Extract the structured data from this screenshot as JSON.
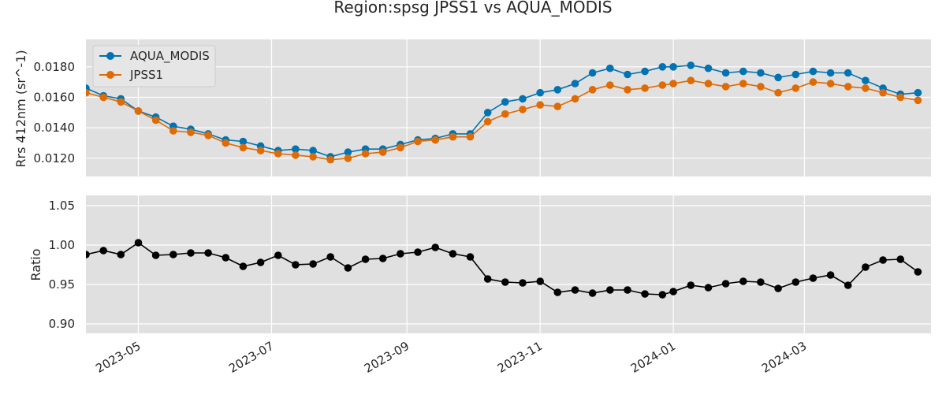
{
  "title": "Region:spsg JPSS1 vs AQUA_MODIS",
  "colors": {
    "AQUA_MODIS": "#0173b2",
    "JPSS1": "#de6b05",
    "Ratio": "#000000",
    "axes_bg": "#e0e0e0",
    "grid": "#ffffff"
  },
  "chart_data": [
    {
      "type": "line",
      "ylabel": "Rrs 412nm (sr^-1)",
      "ylim": [
        0.0108,
        0.0198
      ],
      "yticks": [
        0.012,
        0.014,
        0.016,
        0.018
      ],
      "ytick_labels": [
        "0.0120",
        "0.0140",
        "0.0160",
        "0.0180"
      ],
      "xlim": [
        "2023-04-07",
        "2024-04-28"
      ],
      "grid": true,
      "legend": "upper-left",
      "series": [
        {
          "name": "AQUA_MODIS",
          "x": [
            "2023-04-07",
            "2023-04-15",
            "2023-04-23",
            "2023-05-01",
            "2023-05-09",
            "2023-05-17",
            "2023-05-25",
            "2023-06-02",
            "2023-06-10",
            "2023-06-18",
            "2023-06-26",
            "2023-07-04",
            "2023-07-12",
            "2023-07-20",
            "2023-07-28",
            "2023-08-05",
            "2023-08-13",
            "2023-08-21",
            "2023-08-29",
            "2023-09-06",
            "2023-09-14",
            "2023-09-22",
            "2023-09-30",
            "2023-10-08",
            "2023-10-16",
            "2023-10-24",
            "2023-11-01",
            "2023-11-09",
            "2023-11-17",
            "2023-11-25",
            "2023-12-03",
            "2023-12-11",
            "2023-12-19",
            "2023-12-27",
            "2024-01-01",
            "2024-01-09",
            "2024-01-17",
            "2024-01-25",
            "2024-02-02",
            "2024-02-10",
            "2024-02-18",
            "2024-02-26",
            "2024-03-05",
            "2024-03-13",
            "2024-03-21",
            "2024-03-29",
            "2024-04-06",
            "2024-04-14",
            "2024-04-22"
          ],
          "y": [
            0.0166,
            0.0161,
            0.0159,
            0.0151,
            0.0147,
            0.0141,
            0.0139,
            0.0136,
            0.0132,
            0.0131,
            0.0128,
            0.0125,
            0.0126,
            0.0125,
            0.0121,
            0.0124,
            0.0126,
            0.0126,
            0.0129,
            0.0132,
            0.0133,
            0.0136,
            0.0136,
            0.015,
            0.0157,
            0.0159,
            0.0163,
            0.0165,
            0.0169,
            0.0176,
            0.0179,
            0.0175,
            0.0177,
            0.018,
            0.018,
            0.0181,
            0.0179,
            0.0176,
            0.0177,
            0.0176,
            0.0173,
            0.0175,
            0.0177,
            0.0176,
            0.0176,
            0.0171,
            0.0166,
            0.0162,
            0.0163
          ]
        },
        {
          "name": "JPSS1",
          "x": [
            "2023-04-07",
            "2023-04-15",
            "2023-04-23",
            "2023-05-01",
            "2023-05-09",
            "2023-05-17",
            "2023-05-25",
            "2023-06-02",
            "2023-06-10",
            "2023-06-18",
            "2023-06-26",
            "2023-07-04",
            "2023-07-12",
            "2023-07-20",
            "2023-07-28",
            "2023-08-05",
            "2023-08-13",
            "2023-08-21",
            "2023-08-29",
            "2023-09-06",
            "2023-09-14",
            "2023-09-22",
            "2023-09-30",
            "2023-10-08",
            "2023-10-16",
            "2023-10-24",
            "2023-11-01",
            "2023-11-09",
            "2023-11-17",
            "2023-11-25",
            "2023-12-03",
            "2023-12-11",
            "2023-12-19",
            "2023-12-27",
            "2024-01-01",
            "2024-01-09",
            "2024-01-17",
            "2024-01-25",
            "2024-02-02",
            "2024-02-10",
            "2024-02-18",
            "2024-02-26",
            "2024-03-05",
            "2024-03-13",
            "2024-03-21",
            "2024-03-29",
            "2024-04-06",
            "2024-04-14",
            "2024-04-22"
          ],
          "y": [
            0.0163,
            0.016,
            0.0157,
            0.0151,
            0.0145,
            0.0138,
            0.0137,
            0.0135,
            0.013,
            0.0127,
            0.0125,
            0.0123,
            0.0122,
            0.0121,
            0.0119,
            0.012,
            0.0123,
            0.0124,
            0.0127,
            0.0131,
            0.0132,
            0.0134,
            0.0134,
            0.0144,
            0.0149,
            0.0152,
            0.0155,
            0.0154,
            0.0159,
            0.0165,
            0.0168,
            0.0165,
            0.0166,
            0.0168,
            0.0169,
            0.0171,
            0.0169,
            0.0167,
            0.0169,
            0.0167,
            0.0163,
            0.0166,
            0.017,
            0.0169,
            0.0167,
            0.0166,
            0.0163,
            0.016,
            0.0158
          ]
        }
      ]
    },
    {
      "type": "line",
      "ylabel": "Ratio",
      "ylim": [
        0.888,
        1.063
      ],
      "yticks": [
        0.9,
        0.95,
        1.0,
        1.05
      ],
      "ytick_labels": [
        "0.90",
        "0.95",
        "1.00",
        "1.05"
      ],
      "xlim": [
        "2023-04-07",
        "2024-04-28"
      ],
      "xticks": [
        "2023-05-01",
        "2023-07-01",
        "2023-09-01",
        "2023-11-01",
        "2024-01-01",
        "2024-03-01"
      ],
      "xtick_labels": [
        "2023-05",
        "2023-07",
        "2023-09",
        "2023-11",
        "2024-01",
        "2024-03"
      ],
      "grid": true,
      "series": [
        {
          "x": [
            "2023-04-07",
            "2023-04-15",
            "2023-04-23",
            "2023-05-01",
            "2023-05-09",
            "2023-05-17",
            "2023-05-25",
            "2023-06-02",
            "2023-06-10",
            "2023-06-18",
            "2023-06-26",
            "2023-07-04",
            "2023-07-12",
            "2023-07-20",
            "2023-07-28",
            "2023-08-05",
            "2023-08-13",
            "2023-08-21",
            "2023-08-29",
            "2023-09-06",
            "2023-09-14",
            "2023-09-22",
            "2023-09-30",
            "2023-10-08",
            "2023-10-16",
            "2023-10-24",
            "2023-11-01",
            "2023-11-09",
            "2023-11-17",
            "2023-11-25",
            "2023-12-03",
            "2023-12-11",
            "2023-12-19",
            "2023-12-27",
            "2024-01-01",
            "2024-01-09",
            "2024-01-17",
            "2024-01-25",
            "2024-02-02",
            "2024-02-10",
            "2024-02-18",
            "2024-02-26",
            "2024-03-05",
            "2024-03-13",
            "2024-03-21",
            "2024-03-29",
            "2024-04-06",
            "2024-04-14",
            "2024-04-22"
          ],
          "y": [
            0.988,
            0.993,
            0.988,
            1.003,
            0.987,
            0.988,
            0.99,
            0.99,
            0.984,
            0.973,
            0.978,
            0.987,
            0.975,
            0.976,
            0.985,
            0.971,
            0.982,
            0.983,
            0.989,
            0.991,
            0.997,
            0.989,
            0.985,
            0.957,
            0.953,
            0.952,
            0.954,
            0.94,
            0.943,
            0.939,
            0.943,
            0.943,
            0.938,
            0.937,
            0.941,
            0.949,
            0.946,
            0.951,
            0.954,
            0.953,
            0.945,
            0.953,
            0.958,
            0.962,
            0.949,
            0.972,
            0.981,
            0.982,
            0.966
          ]
        }
      ]
    }
  ]
}
